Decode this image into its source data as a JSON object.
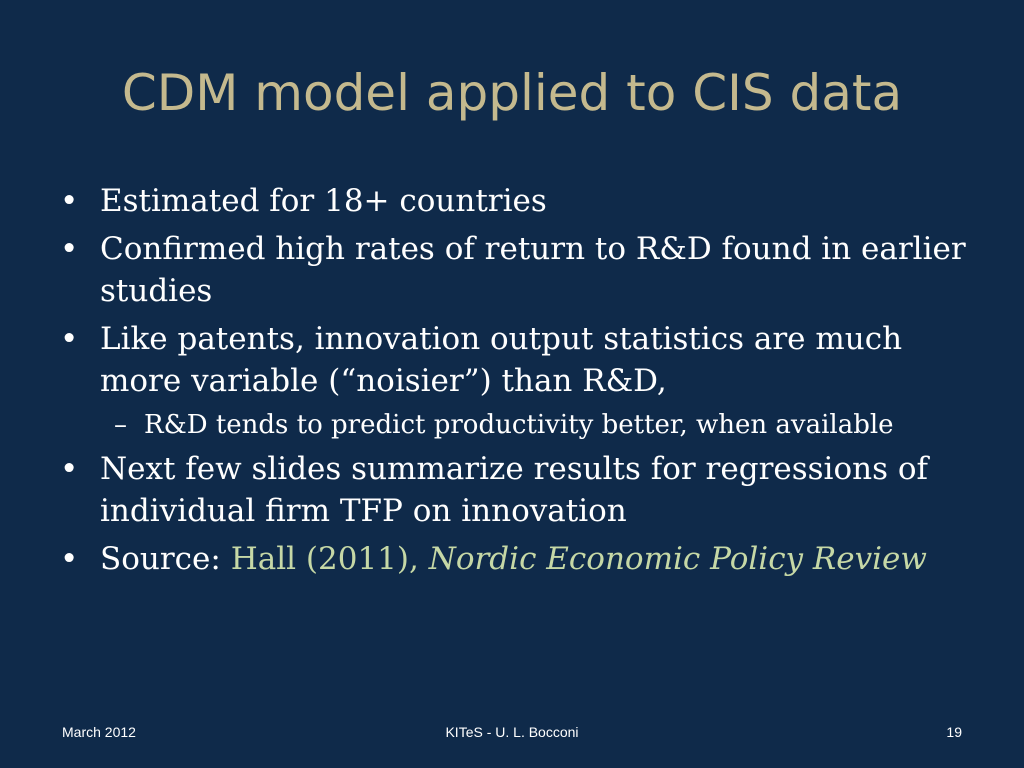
{
  "title": "CDM model applied to CIS data",
  "bullets": [
    {
      "text": "Estimated for 18+ countries"
    },
    {
      "text": "Confirmed high rates of return to R&D found in earlier studies"
    },
    {
      "text": "Like patents, innovation output statistics are much more variable (“noisier”) than R&D,"
    },
    {
      "sub": "R&D tends to predict productivity better, when available"
    },
    {
      "text": "Next few slides summarize results for regressions of individual firm TFP on innovation"
    },
    {
      "text_prefix": "Source: ",
      "link": "Hall (2011), ",
      "link_italic": "Nordic Economic Policy Review"
    }
  ],
  "bullet_glyph": "•",
  "sub_glyph": "–",
  "footer": {
    "date": "March 2012",
    "center": "KITeS - U. L. Bocconi",
    "page": "19"
  },
  "colors": {
    "background": "#0f2a4a",
    "title": "#c4b98e",
    "body_text": "#ffffff",
    "link": "#c6d8a6"
  }
}
